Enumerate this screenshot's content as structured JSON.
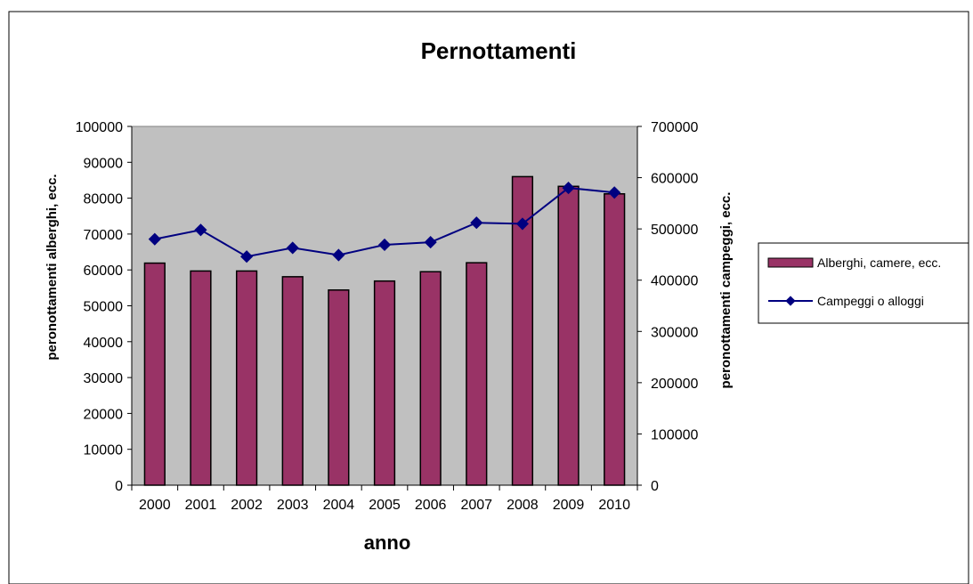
{
  "chart_data": {
    "type": "bar",
    "title": "Pernottamenti",
    "xlabel": "anno",
    "ylabel_left": "peronottamenti alberghi, ecc.",
    "ylabel_right": "peronottamenti campeggi, ecc.",
    "categories": [
      "2000",
      "2001",
      "2002",
      "2003",
      "2004",
      "2005",
      "2006",
      "2007",
      "2008",
      "2009",
      "2010"
    ],
    "y_left": {
      "min": 0,
      "max": 100000,
      "ticks": [
        "100000",
        "90000",
        "80000",
        "70000",
        "60000",
        "50000",
        "40000",
        "30000",
        "20000",
        "10000",
        "0"
      ]
    },
    "y_right": {
      "min": 0,
      "max": 700000,
      "ticks": [
        "700000",
        "600000",
        "500000",
        "400000",
        "300000",
        "200000",
        "100000",
        "0"
      ]
    },
    "series": [
      {
        "name": "Alberghi, camere, ecc.",
        "type": "bar",
        "axis": "left",
        "color": "#993366",
        "values": [
          61900,
          59700,
          59700,
          58100,
          54400,
          56900,
          59500,
          62000,
          86000,
          83300,
          81200
        ]
      },
      {
        "name": "Campeggi o alloggi",
        "type": "line",
        "axis": "right",
        "color": "#000080",
        "values": [
          480000,
          498000,
          446000,
          463000,
          449000,
          469000,
          474000,
          512000,
          510000,
          580000,
          571000
        ]
      }
    ],
    "plot_background": "#c0c0c0",
    "grid": false,
    "legend_position": "right"
  }
}
